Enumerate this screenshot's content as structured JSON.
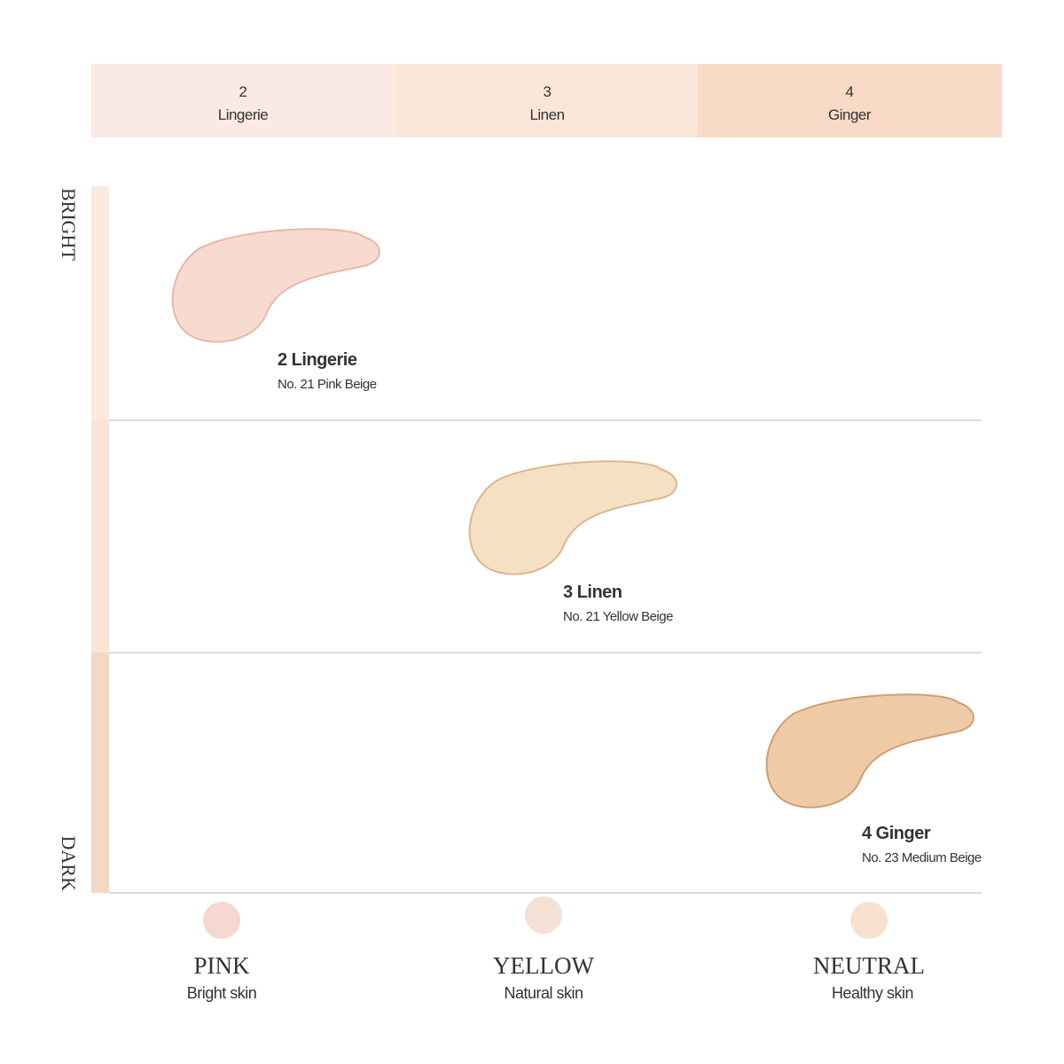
{
  "shade_bar": [
    {
      "number": "2",
      "name": "Lingerie"
    },
    {
      "number": "3",
      "name": "Linen"
    },
    {
      "number": "4",
      "name": "Ginger"
    }
  ],
  "axis": {
    "top": "BRIGHT",
    "bottom": "DARK"
  },
  "swatches": [
    {
      "title": "2 Lingerie",
      "subtitle": "No. 21 Pink Beige"
    },
    {
      "title": "3 Linen",
      "subtitle": "No. 21 Yellow Beige"
    },
    {
      "title": "4 Ginger",
      "subtitle": "No. 23 Medium Beige"
    }
  ],
  "undertones": [
    {
      "name": "PINK",
      "description": "Bright skin"
    },
    {
      "name": "YELLOW",
      "description": "Natural skin"
    },
    {
      "name": "NEUTRAL",
      "description": "Healthy skin"
    }
  ]
}
